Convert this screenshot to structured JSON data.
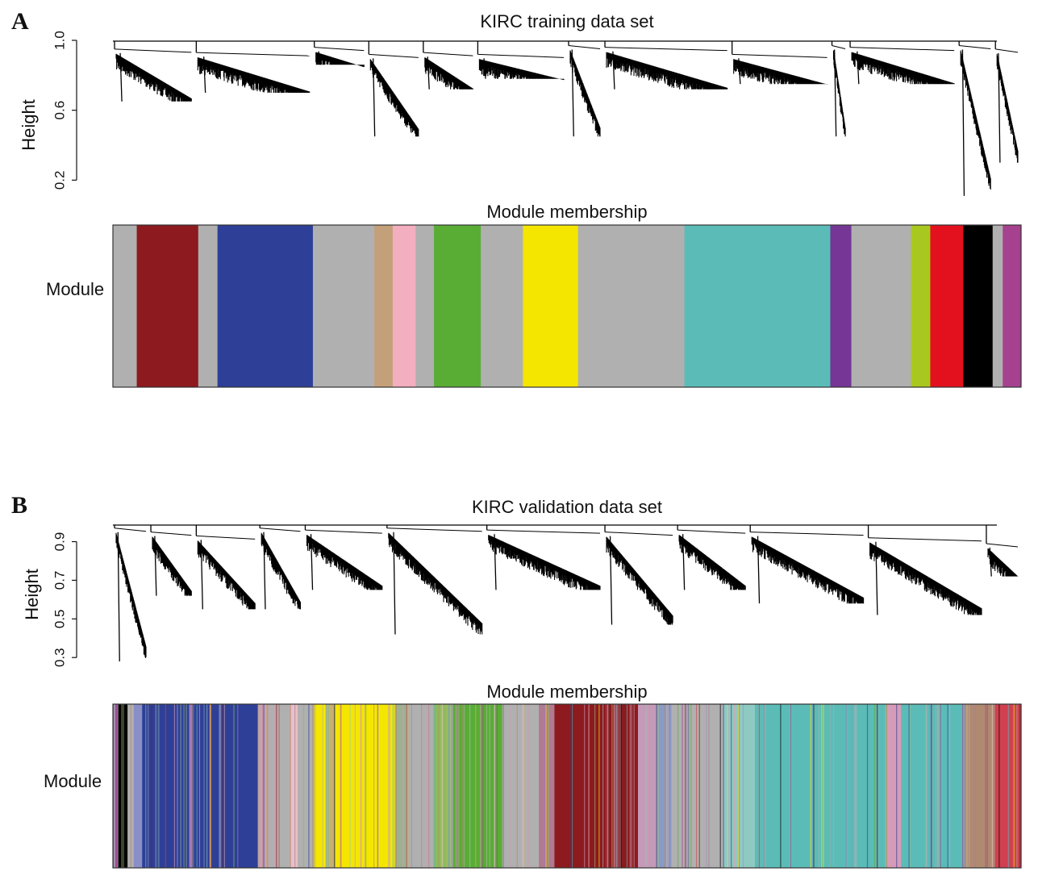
{
  "chart_data": [
    {
      "panel": "A",
      "type": "dendrogram",
      "title": "KIRC training data set",
      "ylabel": "Height",
      "yticks": [
        0.2,
        0.6,
        1.0
      ],
      "ylim": [
        0.1,
        1.0
      ],
      "clusters": [
        {
          "x0": 0.0,
          "x1": 0.09,
          "top": 0.95,
          "bottom": 0.65
        },
        {
          "x0": 0.09,
          "x1": 0.22,
          "top": 0.93,
          "bottom": 0.7
        },
        {
          "x0": 0.22,
          "x1": 0.28,
          "top": 0.96,
          "bottom": 0.86
        },
        {
          "x0": 0.28,
          "x1": 0.34,
          "top": 0.92,
          "bottom": 0.45
        },
        {
          "x0": 0.34,
          "x1": 0.4,
          "top": 0.93,
          "bottom": 0.72
        },
        {
          "x0": 0.4,
          "x1": 0.5,
          "top": 0.92,
          "bottom": 0.78
        },
        {
          "x0": 0.5,
          "x1": 0.54,
          "top": 0.97,
          "bottom": 0.45
        },
        {
          "x0": 0.54,
          "x1": 0.68,
          "top": 0.96,
          "bottom": 0.72
        },
        {
          "x0": 0.68,
          "x1": 0.79,
          "top": 0.92,
          "bottom": 0.75
        },
        {
          "x0": 0.79,
          "x1": 0.81,
          "top": 0.97,
          "bottom": 0.45
        },
        {
          "x0": 0.81,
          "x1": 0.93,
          "top": 0.96,
          "bottom": 0.75
        },
        {
          "x0": 0.93,
          "x1": 0.97,
          "top": 0.97,
          "bottom": 0.11
        },
        {
          "x0": 0.97,
          "x1": 1.0,
          "top": 0.95,
          "bottom": 0.3
        }
      ]
    },
    {
      "panel": "A",
      "type": "color-strip",
      "title": "Module membership",
      "ylabel": "Module",
      "segments": [
        {
          "color": "#b0b0b0",
          "w": 0.026
        },
        {
          "color": "#8c1a1e",
          "w": 0.067
        },
        {
          "color": "#b0b0b0",
          "w": 0.021
        },
        {
          "color": "#2d3f97",
          "w": 0.104
        },
        {
          "color": "#b0b0b0",
          "w": 0.067
        },
        {
          "color": "#c4a07a",
          "w": 0.02
        },
        {
          "color": "#f3aebf",
          "w": 0.025
        },
        {
          "color": "#b0b0b0",
          "w": 0.02
        },
        {
          "color": "#59ad35",
          "w": 0.051
        },
        {
          "color": "#b0b0b0",
          "w": 0.046
        },
        {
          "color": "#f5e600",
          "w": 0.06
        },
        {
          "color": "#b0b0b0",
          "w": 0.116
        },
        {
          "color": "#5bbcb7",
          "w": 0.159
        },
        {
          "color": "#753695",
          "w": 0.023
        },
        {
          "color": "#b0b0b0",
          "w": 0.065
        },
        {
          "color": "#a9c81f",
          "w": 0.021
        },
        {
          "color": "#e3101e",
          "w": 0.036
        },
        {
          "color": "#000000",
          "w": 0.032
        },
        {
          "color": "#b0b0b0",
          "w": 0.011
        },
        {
          "color": "#a5418f",
          "w": 0.02
        }
      ]
    },
    {
      "panel": "B",
      "type": "dendrogram",
      "title": "KIRC validation data set",
      "ylabel": "Height",
      "yticks": [
        0.3,
        0.5,
        0.7,
        0.9
      ],
      "ylim": [
        0.28,
        0.99
      ],
      "clusters": [
        {
          "x0": 0.0,
          "x1": 0.04,
          "top": 0.97,
          "bottom": 0.28
        },
        {
          "x0": 0.04,
          "x1": 0.09,
          "top": 0.95,
          "bottom": 0.62
        },
        {
          "x0": 0.09,
          "x1": 0.16,
          "top": 0.93,
          "bottom": 0.55
        },
        {
          "x0": 0.16,
          "x1": 0.21,
          "top": 0.97,
          "bottom": 0.55
        },
        {
          "x0": 0.21,
          "x1": 0.3,
          "top": 0.96,
          "bottom": 0.65
        },
        {
          "x0": 0.3,
          "x1": 0.41,
          "top": 0.97,
          "bottom": 0.42
        },
        {
          "x0": 0.41,
          "x1": 0.54,
          "top": 0.96,
          "bottom": 0.65
        },
        {
          "x0": 0.54,
          "x1": 0.62,
          "top": 0.95,
          "bottom": 0.47
        },
        {
          "x0": 0.62,
          "x1": 0.7,
          "top": 0.96,
          "bottom": 0.65
        },
        {
          "x0": 0.7,
          "x1": 0.83,
          "top": 0.95,
          "bottom": 0.58
        },
        {
          "x0": 0.83,
          "x1": 0.96,
          "top": 0.92,
          "bottom": 0.52
        },
        {
          "x0": 0.96,
          "x1": 1.0,
          "top": 0.89,
          "bottom": 0.72
        }
      ]
    },
    {
      "panel": "B",
      "type": "color-strip",
      "title": "Module membership",
      "ylabel": "Module",
      "segments": [
        {
          "color": "#a5418f",
          "w": 0.004
        },
        {
          "color": "#000000",
          "w": 0.01
        },
        {
          "color": "#b0b0b0",
          "w": 0.006
        },
        {
          "color": "#8a8fc8",
          "w": 0.008
        },
        {
          "color": "#2d3f97",
          "w": 0.045
        },
        {
          "color": "#a07ab8",
          "w": 0.003
        },
        {
          "color": "#2d3f97",
          "w": 0.063
        },
        {
          "color": "#c9a0b0",
          "w": 0.01
        },
        {
          "color": "#b0b0b0",
          "w": 0.02
        },
        {
          "color": "#e7c0c8",
          "w": 0.008
        },
        {
          "color": "#b0b0b0",
          "w": 0.015
        },
        {
          "color": "#f5e600",
          "w": 0.012
        },
        {
          "color": "#c7b070",
          "w": 0.008
        },
        {
          "color": "#f5e600",
          "w": 0.058
        },
        {
          "color": "#9db090",
          "w": 0.012
        },
        {
          "color": "#b0b0b0",
          "w": 0.025
        },
        {
          "color": "#8bbd5a",
          "w": 0.018
        },
        {
          "color": "#59ad35",
          "w": 0.048
        },
        {
          "color": "#b0b0b0",
          "w": 0.035
        },
        {
          "color": "#b07a90",
          "w": 0.015
        },
        {
          "color": "#8c1a1e",
          "w": 0.08
        },
        {
          "color": "#c59ab8",
          "w": 0.02
        },
        {
          "color": "#8a9ac8",
          "w": 0.012
        },
        {
          "color": "#b0b0b0",
          "w": 0.05
        },
        {
          "color": "#8fcac2",
          "w": 0.03
        },
        {
          "color": "#5bbcb7",
          "w": 0.125
        },
        {
          "color": "#d69bb8",
          "w": 0.015
        },
        {
          "color": "#5bbcb7",
          "w": 0.06
        },
        {
          "color": "#b08a70",
          "w": 0.03
        },
        {
          "color": "#d04050",
          "w": 0.025
        }
      ]
    }
  ],
  "labels": {
    "panelA": "A",
    "panelB": "B",
    "titleA": "KIRC training data set",
    "titleB": "KIRC validation data set",
    "moduleTitleA": "Module membership",
    "moduleTitleB": "Module membership",
    "heightA": "Height",
    "heightB": "Height",
    "moduleA": "Module",
    "moduleB": "Module"
  }
}
